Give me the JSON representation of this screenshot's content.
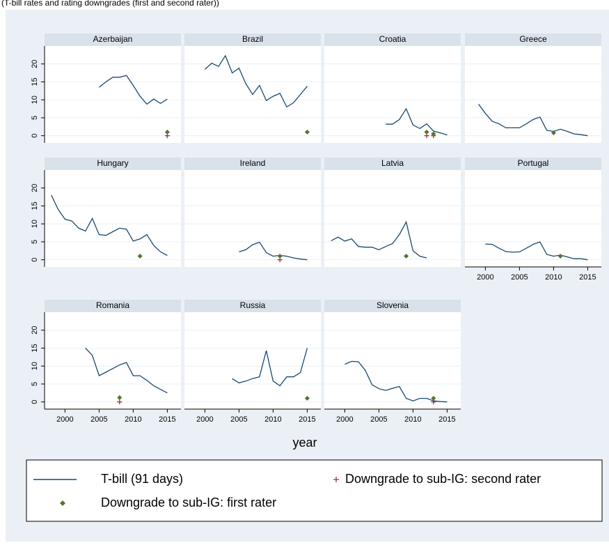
{
  "chart_data": {
    "type": "line",
    "title": "(T-bill rates and rating downgrades (first and second rater))",
    "x_label": "year",
    "xlim": [
      1997,
      2017
    ],
    "xticks": [
      2000,
      2005,
      2010,
      2015
    ],
    "ylim": [
      -2,
      25
    ],
    "yticks": [
      0,
      5,
      10,
      15,
      20
    ],
    "grid": true,
    "series": [
      {
        "name": "T-bill (91 days)",
        "color": "#1a476f"
      },
      {
        "name": "Downgrade to sub-IG: first rater",
        "color": "#55752f"
      },
      {
        "name": "Downgrade to sub-IG: second rater",
        "color": "#90353b"
      }
    ],
    "panels": [
      {
        "title": "Azerbaijan",
        "x": [
          2005,
          2006,
          2007,
          2008,
          2009,
          2010,
          2011,
          2012,
          2013,
          2014,
          2015
        ],
        "values": [
          13.5,
          15,
          16.3,
          16.3,
          16.8,
          14,
          11,
          8.8,
          10.2,
          9,
          10.2
        ],
        "first_rater": {
          "x": [
            2015
          ],
          "values": [
            1
          ]
        },
        "second_rater": {
          "x": [
            2015
          ],
          "values": [
            0
          ]
        }
      },
      {
        "title": "Brazil",
        "x": [
          2000,
          2001,
          2002,
          2003,
          2004,
          2005,
          2006,
          2007,
          2008,
          2009,
          2010,
          2011,
          2012,
          2013,
          2014,
          2015
        ],
        "values": [
          18.5,
          20.2,
          19.3,
          22.3,
          17.5,
          18.8,
          14.5,
          11.5,
          14,
          9.8,
          11,
          11.8,
          8,
          9.2,
          11.5,
          13.8
        ],
        "first_rater": {
          "x": [
            2015
          ],
          "values": [
            1
          ]
        },
        "second_rater": {
          "x": [],
          "values": []
        }
      },
      {
        "title": "Croatia",
        "x": [
          2006,
          2007,
          2008,
          2009,
          2010,
          2011,
          2012,
          2013,
          2014,
          2015
        ],
        "values": [
          3.2,
          3.2,
          4.5,
          7.5,
          3,
          2,
          3.3,
          1.3,
          0.8,
          0.2
        ],
        "first_rater": {
          "x": [
            2012,
            2013
          ],
          "values": [
            1,
            0.5
          ]
        },
        "second_rater": {
          "x": [
            2012,
            2013
          ],
          "values": [
            0,
            0
          ]
        }
      },
      {
        "title": "Greece",
        "x": [
          1999,
          2000,
          2001,
          2002,
          2003,
          2004,
          2005,
          2006,
          2007,
          2008,
          2009,
          2010,
          2011,
          2012,
          2013,
          2014,
          2015
        ],
        "values": [
          8.8,
          6.2,
          4,
          3.3,
          2.2,
          2.2,
          2.2,
          3.3,
          4.5,
          5.2,
          1.5,
          1.2,
          1.8,
          1.2,
          0.5,
          0.3,
          0
        ],
        "first_rater": {
          "x": [
            2010
          ],
          "values": [
            0.8
          ]
        },
        "second_rater": {
          "x": [],
          "values": []
        }
      },
      {
        "title": "Hungary",
        "x": [
          1998,
          1999,
          2000,
          2001,
          2002,
          2003,
          2004,
          2005,
          2006,
          2007,
          2008,
          2009,
          2010,
          2011,
          2012,
          2013,
          2014,
          2015
        ],
        "values": [
          18,
          14,
          11.3,
          10.8,
          8.8,
          8,
          11.5,
          7,
          6.8,
          7.8,
          8.8,
          8.5,
          5.2,
          5.8,
          7,
          4,
          2.2,
          1.2
        ],
        "first_rater": {
          "x": [
            2011
          ],
          "values": [
            1
          ]
        },
        "second_rater": {
          "x": [],
          "values": []
        }
      },
      {
        "title": "Ireland",
        "x": [
          2005,
          2006,
          2007,
          2008,
          2009,
          2010,
          2011,
          2012,
          2013,
          2014,
          2015
        ],
        "values": [
          2.2,
          2.8,
          4.2,
          4.9,
          2,
          1,
          1.2,
          1,
          0.5,
          0.2,
          0
        ],
        "first_rater": {
          "x": [
            2011
          ],
          "values": [
            1
          ]
        },
        "second_rater": {
          "x": [
            2011
          ],
          "values": [
            0
          ]
        }
      },
      {
        "title": "Latvia",
        "x": [
          1998,
          1999,
          2000,
          2001,
          2002,
          2003,
          2004,
          2005,
          2006,
          2007,
          2008,
          2009,
          2010,
          2011,
          2012
        ],
        "values": [
          5.3,
          6.3,
          5.2,
          5.8,
          3.7,
          3.5,
          3.5,
          2.8,
          3.7,
          4.5,
          7,
          10.5,
          2.5,
          1,
          0.5
        ],
        "first_rater": {
          "x": [
            2009
          ],
          "values": [
            1
          ]
        },
        "second_rater": {
          "x": [],
          "values": []
        }
      },
      {
        "title": "Portugal",
        "x": [
          2000,
          2001,
          2002,
          2003,
          2004,
          2005,
          2006,
          2007,
          2008,
          2009,
          2010,
          2011,
          2012,
          2013,
          2014,
          2015
        ],
        "values": [
          4.4,
          4.3,
          3.2,
          2.3,
          2.1,
          2.2,
          3.2,
          4.3,
          5,
          1.5,
          1,
          1.3,
          0.8,
          0.3,
          0.3,
          0
        ],
        "first_rater": {
          "x": [
            2011
          ],
          "values": [
            1
          ]
        },
        "second_rater": {
          "x": [],
          "values": []
        }
      },
      {
        "title": "Romania",
        "x": [
          2003,
          2004,
          2005,
          2006,
          2007,
          2008,
          2009,
          2010,
          2011,
          2012,
          2013,
          2014,
          2015
        ],
        "values": [
          15,
          13,
          7.3,
          8.3,
          9.3,
          10.3,
          11,
          7.3,
          7.3,
          6,
          4.5,
          3.5,
          2.5
        ],
        "first_rater": {
          "x": [
            2008
          ],
          "values": [
            1.2
          ]
        },
        "second_rater": {
          "x": [
            2008
          ],
          "values": [
            0
          ]
        }
      },
      {
        "title": "Russia",
        "x": [
          2004,
          2005,
          2006,
          2007,
          2008,
          2009,
          2010,
          2011,
          2012,
          2013,
          2014,
          2015
        ],
        "values": [
          6.5,
          5.3,
          5.8,
          6.5,
          7,
          14.3,
          5.8,
          4.5,
          7,
          7,
          8.2,
          15
        ],
        "first_rater": {
          "x": [
            2015
          ],
          "values": [
            1
          ]
        },
        "second_rater": {
          "x": [],
          "values": []
        }
      },
      {
        "title": "Slovenia",
        "x": [
          2000,
          2001,
          2002,
          2003,
          2004,
          2005,
          2006,
          2007,
          2008,
          2009,
          2010,
          2011,
          2012,
          2013,
          2014,
          2015
        ],
        "values": [
          10.5,
          11.3,
          11.2,
          8.8,
          4.8,
          3.7,
          3.2,
          3.8,
          4.3,
          1,
          0.3,
          1,
          1,
          0.3,
          0.1,
          0
        ],
        "first_rater": {
          "x": [
            2013
          ],
          "values": [
            1
          ]
        },
        "second_rater": {
          "x": [
            2013
          ],
          "values": [
            0
          ]
        }
      }
    ]
  }
}
